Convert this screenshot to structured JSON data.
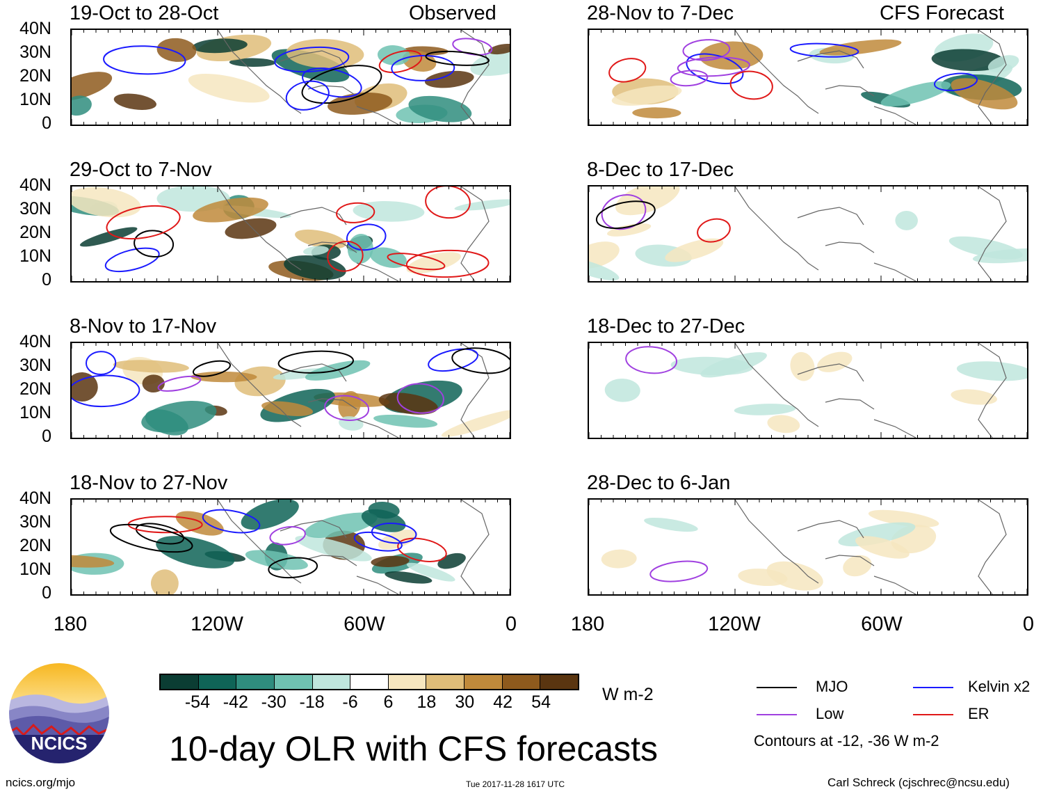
{
  "chart_data": {
    "type": "heatmap",
    "title": "10-day OLR with CFS forecasts",
    "units": "W m-2",
    "x_ticks": [
      "180",
      "120W",
      "60W",
      "0"
    ],
    "y_ticks": [
      "40N",
      "30N",
      "20N",
      "10N",
      "0"
    ],
    "x_range_deg": [
      -180,
      0
    ],
    "y_range_deg": [
      0,
      40
    ],
    "colorbar": {
      "ticks": [
        "-54",
        "-42",
        "-30",
        "-18",
        "-6",
        "6",
        "18",
        "30",
        "42",
        "54"
      ],
      "colors": [
        "#0b3d33",
        "#0f6457",
        "#2f8d7e",
        "#6fc2b1",
        "#bfe6dd",
        "#ffffff",
        "#f6e6bf",
        "#dfbd79",
        "#c08a3b",
        "#8e5a1d",
        "#5a3510"
      ]
    },
    "legend": [
      {
        "name": "MJO",
        "color": "#000000"
      },
      {
        "name": "Kelvin x2",
        "color": "#1a1aff"
      },
      {
        "name": "Low",
        "color": "#a040e0"
      },
      {
        "name": "ER",
        "color": "#e01818"
      }
    ],
    "contour_note": "Contours at -12, -36 W m-2",
    "column_headers": {
      "left": "Observed",
      "right": "CFS Forecast"
    },
    "panels": [
      {
        "period": "19-Oct to 28-Oct",
        "column": "left",
        "row": 0
      },
      {
        "period": "29-Oct to 7-Nov",
        "column": "left",
        "row": 1
      },
      {
        "period": "8-Nov to 17-Nov",
        "column": "left",
        "row": 2
      },
      {
        "period": "18-Nov to 27-Nov",
        "column": "left",
        "row": 3
      },
      {
        "period": "28-Nov to 7-Dec",
        "column": "right",
        "row": 0
      },
      {
        "period": "8-Dec to 17-Dec",
        "column": "right",
        "row": 1
      },
      {
        "period": "18-Dec to 27-Dec",
        "column": "right",
        "row": 2
      },
      {
        "period": "28-Dec to 6-Jan",
        "column": "right",
        "row": 3
      }
    ]
  },
  "logo_text": "NCICS",
  "footer": {
    "site": "ncics.org/mjo",
    "timestamp": "Tue 2017-11-28 1617 UTC",
    "author": "Carl Schreck (cjschrec@ncsu.edu)"
  }
}
